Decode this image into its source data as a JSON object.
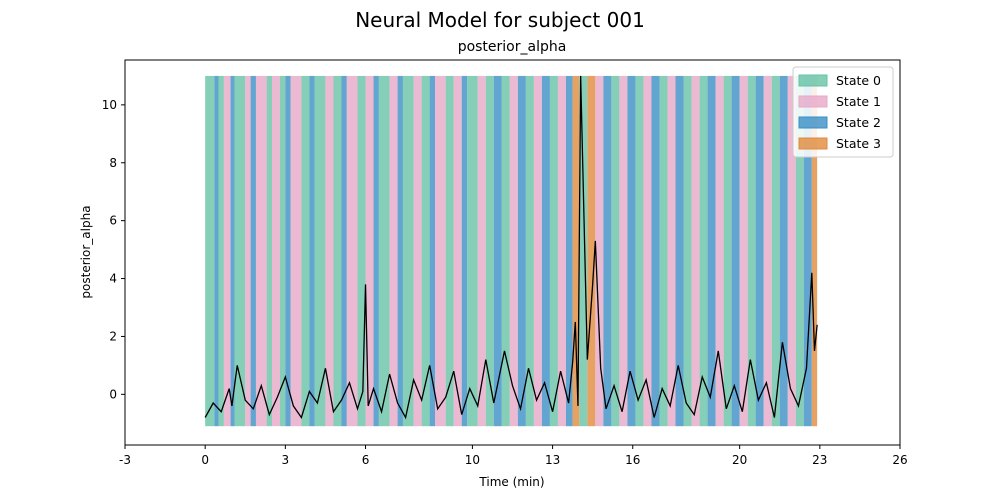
{
  "figure": {
    "suptitle": "Neural Model for subject 001"
  },
  "chart_data": {
    "type": "line",
    "title": "posterior_alpha",
    "xlabel": "Time (min)",
    "ylabel": "posterior_alpha",
    "xlim": [
      -3,
      26
    ],
    "ylim": [
      -1.75,
      11.55
    ],
    "x_ticks": [
      -3,
      0,
      3,
      6,
      10,
      13,
      16,
      20,
      23,
      26
    ],
    "x_tick_labels": [
      "-3",
      "0",
      "3",
      "6",
      "10",
      "13",
      "16",
      "20",
      "23",
      "26"
    ],
    "y_ticks": [
      0,
      2,
      4,
      6,
      8,
      10
    ],
    "y_tick_labels": [
      "0",
      "2",
      "4",
      "6",
      "8",
      "10"
    ],
    "grid": false,
    "legend_placement": "top-right",
    "state_band_range": [
      -1.1,
      11.0
    ],
    "states": [
      {
        "name": "State 0",
        "color": "#66c2a5"
      },
      {
        "name": "State 1",
        "color": "#e7a8c8"
      },
      {
        "name": "State 2",
        "color": "#3a8fc4"
      },
      {
        "name": "State 3",
        "color": "#e08a3c"
      }
    ],
    "state_segments": [
      [
        0.0,
        0.35,
        0
      ],
      [
        0.35,
        0.5,
        2
      ],
      [
        0.5,
        0.7,
        0
      ],
      [
        0.7,
        0.95,
        1
      ],
      [
        0.95,
        1.1,
        2
      ],
      [
        1.1,
        1.5,
        0
      ],
      [
        1.5,
        1.7,
        1
      ],
      [
        1.7,
        1.9,
        2
      ],
      [
        1.9,
        2.3,
        1
      ],
      [
        2.3,
        2.5,
        0
      ],
      [
        2.5,
        2.8,
        1
      ],
      [
        2.8,
        3.0,
        0
      ],
      [
        3.0,
        3.2,
        2
      ],
      [
        3.2,
        3.6,
        1
      ],
      [
        3.6,
        3.9,
        0
      ],
      [
        3.9,
        4.1,
        2
      ],
      [
        4.1,
        4.5,
        0
      ],
      [
        4.5,
        4.8,
        1
      ],
      [
        4.8,
        5.1,
        0
      ],
      [
        5.1,
        5.3,
        2
      ],
      [
        5.3,
        5.7,
        1
      ],
      [
        5.7,
        6.0,
        0
      ],
      [
        6.0,
        6.3,
        1
      ],
      [
        6.3,
        6.5,
        2
      ],
      [
        6.5,
        6.9,
        0
      ],
      [
        6.9,
        7.2,
        1
      ],
      [
        7.2,
        7.4,
        2
      ],
      [
        7.4,
        7.8,
        0
      ],
      [
        7.8,
        8.1,
        1
      ],
      [
        8.1,
        8.4,
        0
      ],
      [
        8.4,
        8.6,
        2
      ],
      [
        8.6,
        9.0,
        1
      ],
      [
        9.0,
        9.3,
        0
      ],
      [
        9.3,
        9.6,
        1
      ],
      [
        9.6,
        9.8,
        2
      ],
      [
        9.8,
        10.2,
        0
      ],
      [
        10.2,
        10.5,
        1
      ],
      [
        10.5,
        10.8,
        0
      ],
      [
        10.8,
        11.1,
        2
      ],
      [
        11.1,
        11.4,
        0
      ],
      [
        11.4,
        11.7,
        1
      ],
      [
        11.7,
        12.0,
        2
      ],
      [
        12.0,
        12.3,
        0
      ],
      [
        12.3,
        12.6,
        1
      ],
      [
        12.6,
        12.9,
        2
      ],
      [
        12.9,
        13.2,
        0
      ],
      [
        13.2,
        13.5,
        1
      ],
      [
        13.5,
        13.75,
        2
      ],
      [
        13.75,
        14.0,
        3
      ],
      [
        14.0,
        14.3,
        0
      ],
      [
        14.3,
        14.6,
        3
      ],
      [
        14.6,
        14.9,
        1
      ],
      [
        14.9,
        15.2,
        2
      ],
      [
        15.2,
        15.5,
        0
      ],
      [
        15.5,
        15.8,
        1
      ],
      [
        15.8,
        16.1,
        2
      ],
      [
        16.1,
        16.4,
        0
      ],
      [
        16.4,
        16.7,
        1
      ],
      [
        16.7,
        17.0,
        2
      ],
      [
        17.0,
        17.3,
        0
      ],
      [
        17.3,
        17.6,
        1
      ],
      [
        17.6,
        17.9,
        2
      ],
      [
        17.9,
        18.2,
        0
      ],
      [
        18.2,
        18.5,
        1
      ],
      [
        18.5,
        18.8,
        0
      ],
      [
        18.8,
        19.1,
        2
      ],
      [
        19.1,
        19.4,
        1
      ],
      [
        19.4,
        19.7,
        0
      ],
      [
        19.7,
        20.0,
        2
      ],
      [
        20.0,
        20.3,
        1
      ],
      [
        20.3,
        20.6,
        0
      ],
      [
        20.6,
        20.9,
        2
      ],
      [
        20.9,
        21.2,
        1
      ],
      [
        21.2,
        21.5,
        0
      ],
      [
        21.5,
        21.8,
        2
      ],
      [
        21.8,
        22.1,
        1
      ],
      [
        22.1,
        22.4,
        0
      ],
      [
        22.4,
        22.7,
        2
      ],
      [
        22.7,
        22.9,
        3
      ]
    ],
    "line_color": "#000000",
    "series": [
      {
        "x": [
          0.0,
          0.3,
          0.6,
          0.9,
          1.0,
          1.2,
          1.5,
          1.8,
          2.1,
          2.4,
          2.7,
          3.0,
          3.3,
          3.6,
          3.9,
          4.2,
          4.5,
          4.8,
          5.1,
          5.4,
          5.7,
          5.9,
          6.0,
          6.1,
          6.3,
          6.6,
          6.9,
          7.2,
          7.5,
          7.8,
          8.1,
          8.4,
          8.7,
          9.0,
          9.3,
          9.6,
          9.9,
          10.2,
          10.5,
          10.8,
          11.0,
          11.2,
          11.5,
          11.8,
          12.1,
          12.4,
          12.7,
          13.0,
          13.3,
          13.6,
          13.75,
          13.85,
          13.95,
          14.05,
          14.3,
          14.5,
          14.6,
          14.8,
          15.0,
          15.3,
          15.6,
          15.9,
          16.2,
          16.5,
          16.8,
          17.1,
          17.4,
          17.7,
          18.0,
          18.3,
          18.6,
          18.9,
          19.2,
          19.5,
          19.8,
          20.1,
          20.4,
          20.7,
          21.0,
          21.3,
          21.6,
          21.9,
          22.2,
          22.5,
          22.7,
          22.8,
          22.9
        ],
        "y": [
          -0.8,
          -0.3,
          -0.6,
          0.2,
          -0.4,
          1.0,
          -0.2,
          -0.5,
          0.3,
          -0.7,
          -0.1,
          0.6,
          -0.4,
          -0.8,
          0.1,
          -0.3,
          0.9,
          -0.6,
          -0.2,
          0.4,
          -0.5,
          0.1,
          3.8,
          -0.4,
          0.2,
          -0.6,
          0.7,
          -0.3,
          -0.8,
          0.5,
          -0.2,
          1.0,
          -0.5,
          -0.1,
          0.8,
          -0.7,
          0.2,
          -0.4,
          1.2,
          -0.3,
          0.6,
          1.5,
          0.3,
          -0.5,
          0.9,
          -0.2,
          0.4,
          -0.6,
          0.8,
          -0.3,
          1.1,
          2.5,
          -0.4,
          11.0,
          1.2,
          3.8,
          5.3,
          0.9,
          -0.5,
          0.3,
          -0.6,
          0.8,
          -0.2,
          0.5,
          -0.8,
          0.2,
          -0.4,
          1.0,
          -0.3,
          -0.7,
          0.6,
          -0.1,
          1.5,
          -0.5,
          0.3,
          -0.6,
          1.2,
          -0.2,
          0.4,
          -0.8,
          1.8,
          0.2,
          -0.4,
          0.9,
          4.2,
          1.5,
          2.4
        ]
      }
    ]
  }
}
